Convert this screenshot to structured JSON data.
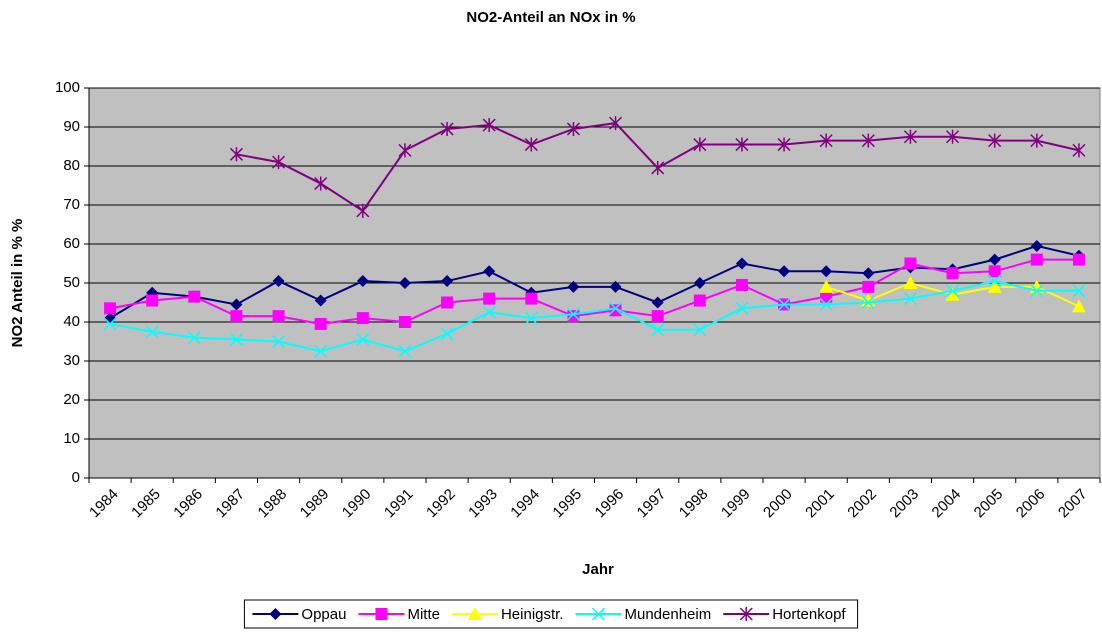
{
  "chart_data": {
    "type": "line",
    "title": "NO2-Anteil an NOx in %",
    "x_label": "Jahr",
    "y_label": "NO2 Anteil in % %",
    "categories": [
      "1984",
      "1985",
      "1986",
      "1987",
      "1988",
      "1989",
      "1990",
      "1991",
      "1992",
      "1993",
      "1994",
      "1995",
      "1996",
      "1997",
      "1998",
      "1999",
      "2000",
      "2001",
      "2002",
      "2003",
      "2004",
      "2005",
      "2006",
      "2007"
    ],
    "ylim": [
      0,
      100
    ],
    "yticks": [
      0,
      10,
      20,
      30,
      40,
      50,
      60,
      70,
      80,
      90,
      100
    ],
    "grid": true,
    "legend": "bottom",
    "series": [
      {
        "name": "Oppau",
        "color": "#000080",
        "marker": "diamond",
        "values": [
          41,
          47.5,
          46.5,
          44.5,
          50.5,
          45.5,
          50.5,
          50,
          50.5,
          53,
          47.5,
          49,
          49,
          45,
          50,
          55,
          53,
          53,
          52.5,
          54,
          53.5,
          56,
          59.5,
          57
        ]
      },
      {
        "name": "Mitte",
        "color": "#ff00ff",
        "marker": "square",
        "values": [
          43.5,
          45.5,
          46.5,
          41.5,
          41.5,
          39.5,
          41,
          40,
          45,
          46,
          46,
          41.5,
          43,
          41.5,
          45.5,
          49.5,
          44.5,
          46.5,
          49,
          55,
          52.5,
          53,
          56,
          56
        ]
      },
      {
        "name": "Heinigstr.",
        "color": "#ffff00",
        "marker": "triangle",
        "values": [
          null,
          null,
          null,
          null,
          null,
          null,
          null,
          null,
          null,
          null,
          null,
          null,
          null,
          null,
          null,
          null,
          null,
          49,
          45.5,
          50,
          47,
          49,
          49,
          44
        ]
      },
      {
        "name": "Mundenheim",
        "color": "#00ffff",
        "marker": "x",
        "values": [
          39.5,
          37.5,
          36,
          35.5,
          35,
          32.5,
          35.5,
          32.5,
          37,
          42.5,
          41,
          42,
          43.5,
          38,
          38,
          43.5,
          44.5,
          44.5,
          45,
          46,
          48,
          50.5,
          48,
          48
        ]
      },
      {
        "name": "Hortenkopf",
        "color": "#800080",
        "marker": "asterisk",
        "values": [
          null,
          null,
          null,
          83,
          81,
          75.5,
          68.5,
          84,
          89.5,
          90.5,
          85.5,
          89.5,
          91,
          79.5,
          85.5,
          85.5,
          85.5,
          86.5,
          86.5,
          87.5,
          87.5,
          86.5,
          86.5,
          84
        ]
      }
    ]
  }
}
